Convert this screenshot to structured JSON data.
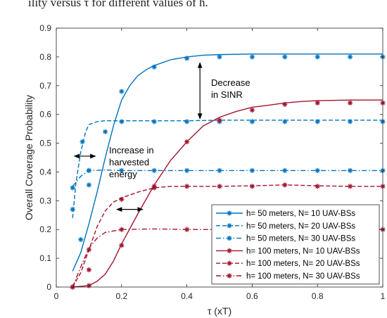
{
  "caption_fragment": "ility versus τ for different values of h.",
  "colors": {
    "blue": "#0072BD",
    "red": "#A2142F"
  },
  "chart_data": {
    "type": "line",
    "title": "",
    "xlabel": "τ (xT)",
    "ylabel": "Overall Coverage Probability",
    "xlim": [
      0,
      1
    ],
    "ylim": [
      0,
      0.9
    ],
    "xticks": [
      "0",
      "0.2",
      "0.4",
      "0.6",
      "0.8",
      "1"
    ],
    "yticks": [
      "0",
      "0.1",
      "0.2",
      "0.3",
      "0.4",
      "0.5",
      "0.6",
      "0.7",
      "0.8",
      "0.9"
    ],
    "grid": false,
    "legend_position": "bottom-right",
    "series": [
      {
        "name": "h= 50 meters, N= 10 UAV-BSs",
        "color": "#0072BD",
        "dash": "solid",
        "line": [
          [
            0.05,
            0.055
          ],
          [
            0.075,
            0.12
          ],
          [
            0.1,
            0.22
          ],
          [
            0.125,
            0.33
          ],
          [
            0.15,
            0.45
          ],
          [
            0.175,
            0.56
          ],
          [
            0.2,
            0.65
          ],
          [
            0.225,
            0.7
          ],
          [
            0.25,
            0.735
          ],
          [
            0.275,
            0.755
          ],
          [
            0.3,
            0.77
          ],
          [
            0.35,
            0.79
          ],
          [
            0.4,
            0.8
          ],
          [
            0.45,
            0.806
          ],
          [
            0.5,
            0.808
          ],
          [
            0.6,
            0.81
          ],
          [
            0.7,
            0.81
          ],
          [
            0.8,
            0.81
          ],
          [
            0.9,
            0.81
          ],
          [
            1.0,
            0.81
          ]
        ],
        "markers": [
          [
            0.075,
            0.165
          ],
          [
            0.1,
            0.355
          ],
          [
            0.15,
            0.54
          ],
          [
            0.2,
            0.68
          ],
          [
            0.3,
            0.765
          ],
          [
            0.4,
            0.795
          ],
          [
            0.5,
            0.8
          ],
          [
            0.6,
            0.8
          ],
          [
            0.7,
            0.8
          ],
          [
            0.8,
            0.8
          ],
          [
            0.9,
            0.8
          ],
          [
            1.0,
            0.8
          ]
        ]
      },
      {
        "name": "h= 50 meters, N= 20 UAV-BSs",
        "color": "#0072BD",
        "dash": "dashed",
        "line": [
          [
            0.05,
            0.24
          ],
          [
            0.06,
            0.36
          ],
          [
            0.075,
            0.47
          ],
          [
            0.09,
            0.54
          ],
          [
            0.1,
            0.565
          ],
          [
            0.125,
            0.575
          ],
          [
            0.15,
            0.578
          ],
          [
            0.2,
            0.578
          ],
          [
            0.3,
            0.578
          ],
          [
            0.4,
            0.578
          ],
          [
            0.5,
            0.58
          ],
          [
            0.6,
            0.58
          ],
          [
            0.7,
            0.58
          ],
          [
            0.8,
            0.58
          ],
          [
            0.9,
            0.58
          ],
          [
            1.0,
            0.58
          ]
        ],
        "markers": [
          [
            0.05,
            0.27
          ],
          [
            0.1,
            0.405
          ],
          [
            0.2,
            0.575
          ],
          [
            0.3,
            0.575
          ],
          [
            0.4,
            0.575
          ],
          [
            0.5,
            0.575
          ],
          [
            0.6,
            0.575
          ],
          [
            0.7,
            0.575
          ],
          [
            0.8,
            0.575
          ],
          [
            0.9,
            0.575
          ],
          [
            1.0,
            0.575
          ]
        ]
      },
      {
        "name": "h= 50 meters, N= 30 UAV-BSs",
        "color": "#0072BD",
        "dash": "dashdot",
        "line": [
          [
            0.05,
            0.35
          ],
          [
            0.075,
            0.385
          ],
          [
            0.1,
            0.405
          ],
          [
            0.15,
            0.407
          ],
          [
            0.2,
            0.405
          ],
          [
            0.3,
            0.405
          ],
          [
            0.4,
            0.405
          ],
          [
            0.5,
            0.405
          ],
          [
            0.6,
            0.405
          ],
          [
            0.7,
            0.405
          ],
          [
            0.8,
            0.405
          ],
          [
            0.9,
            0.405
          ],
          [
            1.0,
            0.405
          ]
        ],
        "markers": [
          [
            0.05,
            0.345
          ],
          [
            0.08,
            0.505
          ],
          [
            0.1,
            0.405
          ],
          [
            0.2,
            0.405
          ],
          [
            0.3,
            0.405
          ],
          [
            0.4,
            0.405
          ],
          [
            0.5,
            0.405
          ],
          [
            0.6,
            0.405
          ],
          [
            0.7,
            0.405
          ],
          [
            0.8,
            0.405
          ],
          [
            0.9,
            0.405
          ],
          [
            1.0,
            0.405
          ]
        ]
      },
      {
        "name": "h= 100 meters, N= 10 UAV-BSs",
        "color": "#A2142F",
        "dash": "solid",
        "line": [
          [
            0.05,
            0.0
          ],
          [
            0.1,
            0.005
          ],
          [
            0.125,
            0.02
          ],
          [
            0.15,
            0.045
          ],
          [
            0.175,
            0.09
          ],
          [
            0.2,
            0.15
          ],
          [
            0.25,
            0.255
          ],
          [
            0.3,
            0.355
          ],
          [
            0.35,
            0.44
          ],
          [
            0.4,
            0.505
          ],
          [
            0.45,
            0.56
          ],
          [
            0.5,
            0.59
          ],
          [
            0.55,
            0.61
          ],
          [
            0.6,
            0.625
          ],
          [
            0.65,
            0.632
          ],
          [
            0.7,
            0.64
          ],
          [
            0.75,
            0.645
          ],
          [
            0.8,
            0.648
          ],
          [
            0.9,
            0.65
          ],
          [
            1.0,
            0.65
          ]
        ],
        "markers": [
          [
            0.05,
            0.0
          ],
          [
            0.1,
            0.005
          ],
          [
            0.2,
            0.145
          ],
          [
            0.3,
            0.345
          ],
          [
            0.4,
            0.505
          ],
          [
            0.5,
            0.58
          ],
          [
            0.6,
            0.615
          ],
          [
            0.7,
            0.635
          ],
          [
            0.8,
            0.64
          ],
          [
            0.9,
            0.64
          ],
          [
            1.0,
            0.64
          ]
        ]
      },
      {
        "name": "h= 100 meters, N= 20 UAV-BSs",
        "color": "#A2142F",
        "dash": "dashed",
        "line": [
          [
            0.05,
            0.0
          ],
          [
            0.075,
            0.05
          ],
          [
            0.1,
            0.13
          ],
          [
            0.125,
            0.21
          ],
          [
            0.15,
            0.265
          ],
          [
            0.175,
            0.295
          ],
          [
            0.2,
            0.31
          ],
          [
            0.25,
            0.33
          ],
          [
            0.3,
            0.345
          ],
          [
            0.35,
            0.35
          ],
          [
            0.4,
            0.35
          ],
          [
            0.5,
            0.35
          ],
          [
            0.6,
            0.352
          ],
          [
            0.7,
            0.355
          ],
          [
            0.8,
            0.352
          ],
          [
            0.9,
            0.35
          ],
          [
            1.0,
            0.35
          ]
        ],
        "markers": [
          [
            0.05,
            0.0
          ],
          [
            0.1,
            0.06
          ],
          [
            0.2,
            0.305
          ],
          [
            0.3,
            0.35
          ],
          [
            0.4,
            0.35
          ],
          [
            0.5,
            0.35
          ],
          [
            0.6,
            0.35
          ],
          [
            0.7,
            0.355
          ],
          [
            0.8,
            0.35
          ],
          [
            0.9,
            0.35
          ],
          [
            1.0,
            0.35
          ]
        ]
      },
      {
        "name": "h= 100 meters, N= 30 UAV-BSs",
        "color": "#A2142F",
        "dash": "dashdot",
        "line": [
          [
            0.05,
            0.0
          ],
          [
            0.075,
            0.07
          ],
          [
            0.1,
            0.135
          ],
          [
            0.125,
            0.17
          ],
          [
            0.15,
            0.19
          ],
          [
            0.2,
            0.2
          ],
          [
            0.3,
            0.202
          ],
          [
            0.4,
            0.2
          ],
          [
            0.5,
            0.2
          ],
          [
            0.6,
            0.2
          ],
          [
            0.7,
            0.2
          ],
          [
            0.8,
            0.2
          ],
          [
            0.9,
            0.2
          ],
          [
            1.0,
            0.2
          ]
        ],
        "markers": [
          [
            0.05,
            0.0
          ],
          [
            0.1,
            0.13
          ],
          [
            0.2,
            0.2
          ],
          [
            0.4,
            0.2
          ],
          [
            1.0,
            0.2
          ]
        ]
      }
    ],
    "annotations": [
      {
        "id": "sinr",
        "lines": [
          "Decrease",
          "in SINR"
        ],
        "arrow": {
          "type": "vertical",
          "x": 0.44,
          "y1": 0.78,
          "y2": 0.585
        }
      },
      {
        "id": "energy",
        "lines": [
          "Increase in",
          "harvested",
          "energy"
        ],
        "arrows": [
          {
            "x1": 0.055,
            "x2": 0.12,
            "y": 0.455
          },
          {
            "x1": 0.185,
            "x2": 0.265,
            "y": 0.27
          }
        ]
      }
    ]
  }
}
